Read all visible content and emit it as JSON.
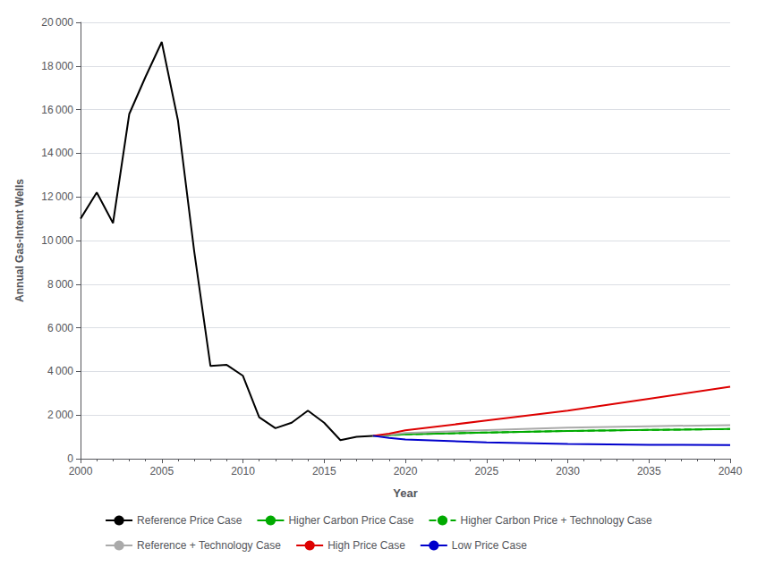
{
  "chart_data": {
    "type": "line",
    "xlabel": "Year",
    "ylabel": "Annual Gas-Intent Wells",
    "xlim": [
      2000,
      2040
    ],
    "xticks": [
      2000,
      2005,
      2010,
      2015,
      2020,
      2025,
      2030,
      2035,
      2040
    ],
    "ylim": [
      0,
      20000
    ],
    "yticks": [
      0,
      {
        "value": 2000,
        "label": "2 000"
      },
      {
        "value": 4000,
        "label": "4 000"
      },
      {
        "value": 6000,
        "label": "6 000"
      },
      {
        "value": 8000,
        "label": "8 000"
      },
      {
        "value": 10000,
        "label": "10 000"
      },
      {
        "value": 12000,
        "label": "12 000"
      },
      {
        "value": 14000,
        "label": "14 000"
      },
      {
        "value": 16000,
        "label": "16 000"
      },
      {
        "value": 18000,
        "label": "18 000"
      },
      {
        "value": 20000,
        "label": "20 000"
      }
    ],
    "grid": "y",
    "legend": "bottom",
    "series": [
      {
        "name": "Reference Price Case",
        "color": "#000000",
        "line_style": "solid",
        "x": [
          2000,
          2001,
          2002,
          2003,
          2004,
          2005,
          2006,
          2007,
          2008,
          2009,
          2010,
          2011,
          2012,
          2013,
          2014,
          2015,
          2016,
          2017,
          2018
        ],
        "values": [
          11000,
          12200,
          10800,
          15800,
          17500,
          19100,
          15500,
          9500,
          4250,
          4300,
          3800,
          1900,
          1400,
          1650,
          2200,
          1650,
          850,
          1000,
          1050
        ]
      },
      {
        "name": "Higher Carbon Price Case",
        "color": "#00aa00",
        "line_style": "solid",
        "x": [
          2018,
          2019,
          2020,
          2025,
          2030,
          2035,
          2040
        ],
        "values": [
          1050,
          1080,
          1120,
          1200,
          1270,
          1320,
          1360
        ]
      },
      {
        "name": "Higher Carbon Price + Technology Case",
        "color": "#00aa00",
        "line_style": "dashed",
        "x": [
          2018,
          2019,
          2020,
          2025,
          2030,
          2035,
          2040
        ],
        "values": [
          1050,
          1080,
          1120,
          1200,
          1270,
          1320,
          1360
        ]
      },
      {
        "name": "Reference + Technology Case",
        "color": "#aaaaaa",
        "line_style": "solid",
        "x": [
          2018,
          2019,
          2020,
          2025,
          2030,
          2035,
          2040
        ],
        "values": [
          1050,
          1100,
          1180,
          1310,
          1420,
          1490,
          1540
        ]
      },
      {
        "name": "High Price Case",
        "color": "#dd0000",
        "line_style": "solid",
        "x": [
          2018,
          2019,
          2020,
          2025,
          2030,
          2035,
          2040
        ],
        "values": [
          1050,
          1150,
          1300,
          1750,
          2200,
          2750,
          3300
        ]
      },
      {
        "name": "Low Price Case",
        "color": "#0000cc",
        "line_style": "solid",
        "x": [
          2018,
          2019,
          2020,
          2025,
          2030,
          2035,
          2040
        ],
        "values": [
          1050,
          950,
          880,
          750,
          680,
          640,
          620
        ]
      }
    ]
  }
}
